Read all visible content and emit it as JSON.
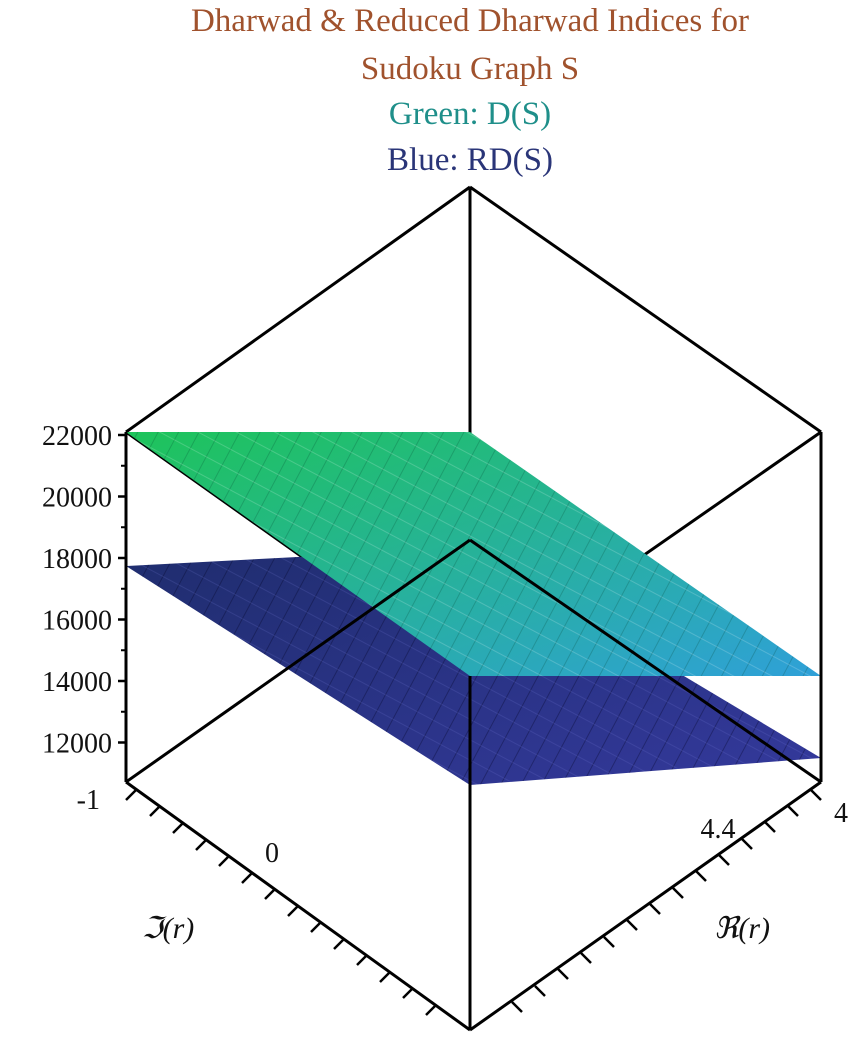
{
  "chart_data": {
    "type": "surface3d",
    "title_lines": [
      "Dharwad & Reduced Dharwad Indices for",
      "Sudoku Graph S"
    ],
    "legend": [
      {
        "text": "Green: D(S)",
        "color": "#1f8f8a"
      },
      {
        "text": "Blue: RD(S)",
        "color": "#2a3578"
      }
    ],
    "title_color": "#a0522d",
    "z_ticks": [
      "22000",
      "20000",
      "18000",
      "16000",
      "14000",
      "12000"
    ],
    "z_range": [
      11000,
      22000
    ],
    "x_axis": {
      "label": "ℜ(r)",
      "ticks": [
        "4.4",
        "4"
      ]
    },
    "y_axis": {
      "label": "ℑ(r)",
      "ticks": [
        "-1",
        "0"
      ]
    },
    "series": [
      {
        "name": "D(S)",
        "color_start": "#1ec45a",
        "color_end": "#2fa0d8",
        "corner_values": [
          22000,
          21800,
          14000,
          14100
        ]
      },
      {
        "name": "RD(S)",
        "color_start": "#1f2d6e",
        "color_end": "#32389a",
        "corner_values": [
          17700,
          17700,
          11400,
          11300
        ]
      }
    ]
  }
}
